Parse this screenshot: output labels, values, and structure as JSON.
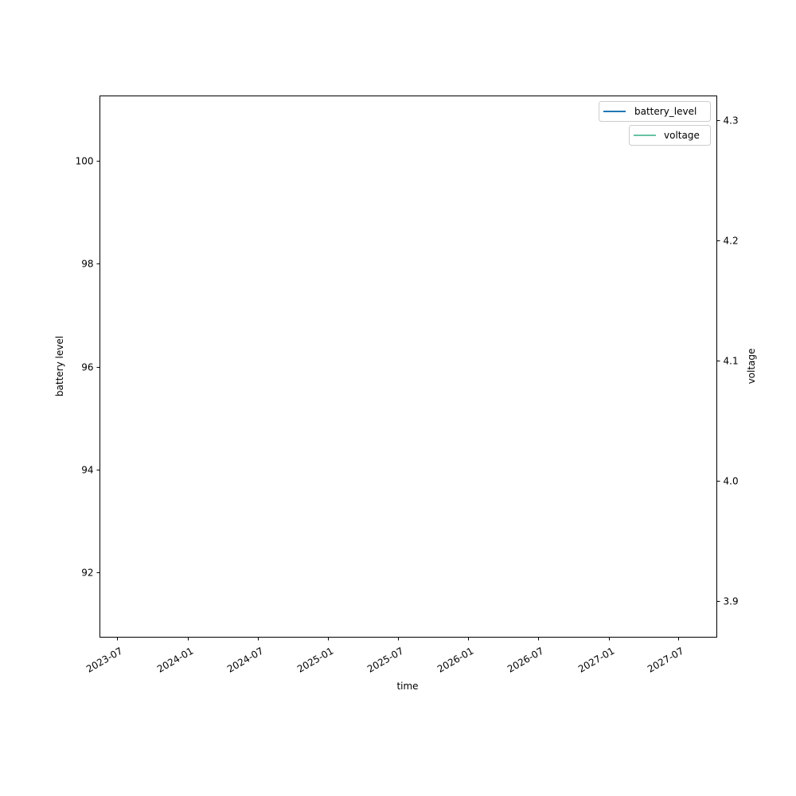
{
  "chart_data": {
    "type": "line",
    "title": "",
    "xlabel": "time",
    "ylabel": "battery level",
    "ylabel_right": "voltage",
    "xlim": [
      "2023-05-17",
      "2027-10-10"
    ],
    "ylim": [
      90.73,
      101.27
    ],
    "ylim_right": [
      3.87,
      4.32
    ],
    "x_ticks": [
      "2023-07-01",
      "2024-01-01",
      "2024-07-01",
      "2025-01-01",
      "2025-07-01",
      "2026-01-01",
      "2026-07-01",
      "2027-01-01",
      "2027-07-01"
    ],
    "x_tick_labels": [
      "2023-07",
      "2024-01",
      "2024-07",
      "2025-01",
      "2025-07",
      "2026-01",
      "2026-07",
      "2027-01",
      "2027-07"
    ],
    "y_ticks": [
      92,
      94,
      96,
      98,
      100
    ],
    "y_tick_labels": [
      "92",
      "94",
      "96",
      "98",
      "100"
    ],
    "y_right_ticks": [
      3.9,
      4.0,
      4.1,
      4.2,
      4.3
    ],
    "y_right_tick_labels": [
      "3.9",
      "4.0",
      "4.1",
      "4.2",
      "4.3"
    ],
    "grid": false,
    "series": [
      {
        "name": "battery_level",
        "axis": "left",
        "color": "#1f77b4",
        "x": [],
        "y": []
      },
      {
        "name": "voltage",
        "axis": "right",
        "color": "#66c2a5",
        "x": [],
        "y": []
      }
    ],
    "legends": [
      {
        "placement": "upper-right",
        "entries": [
          "battery_level"
        ]
      },
      {
        "placement": "upper-right",
        "entries": [
          "voltage"
        ]
      }
    ]
  }
}
